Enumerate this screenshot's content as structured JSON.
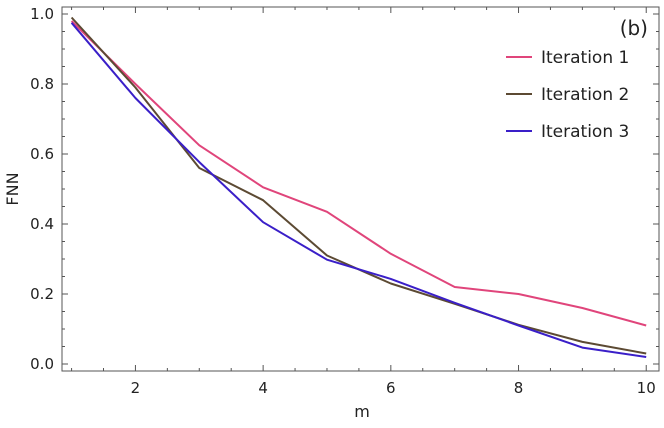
{
  "chart_data": {
    "type": "line",
    "panel_label": "(b)",
    "xlabel": "m",
    "ylabel": "FNN",
    "xlim": [
      0.85,
      10.2
    ],
    "ylim": [
      -0.02,
      1.02
    ],
    "x_ticks": [
      2,
      4,
      6,
      8,
      10
    ],
    "y_ticks": [
      0.0,
      0.2,
      0.4,
      0.6,
      0.8,
      1.0
    ],
    "x_tick_labels": [
      "2",
      "4",
      "6",
      "8",
      "10"
    ],
    "y_tick_labels": [
      "0.0",
      "0.2",
      "0.4",
      "0.6",
      "0.8",
      "1.0"
    ],
    "legend_position": "top-right",
    "grid": false,
    "x": [
      1,
      2,
      3,
      4,
      5,
      6,
      7,
      8,
      9,
      10
    ],
    "series": [
      {
        "name": "Iteration 1",
        "color": "#e0457b",
        "values": [
          0.98,
          0.8,
          0.625,
          0.505,
          0.435,
          0.315,
          0.22,
          0.2,
          0.16,
          0.11
        ]
      },
      {
        "name": "Iteration 2",
        "color": "#5c4a33",
        "values": [
          0.99,
          0.79,
          0.56,
          0.468,
          0.31,
          0.23,
          0.172,
          0.112,
          0.063,
          0.03
        ]
      },
      {
        "name": "Iteration 3",
        "color": "#3a1fc8",
        "values": [
          0.975,
          0.76,
          0.577,
          0.405,
          0.298,
          0.243,
          0.175,
          0.11,
          0.047,
          0.02
        ]
      }
    ]
  }
}
